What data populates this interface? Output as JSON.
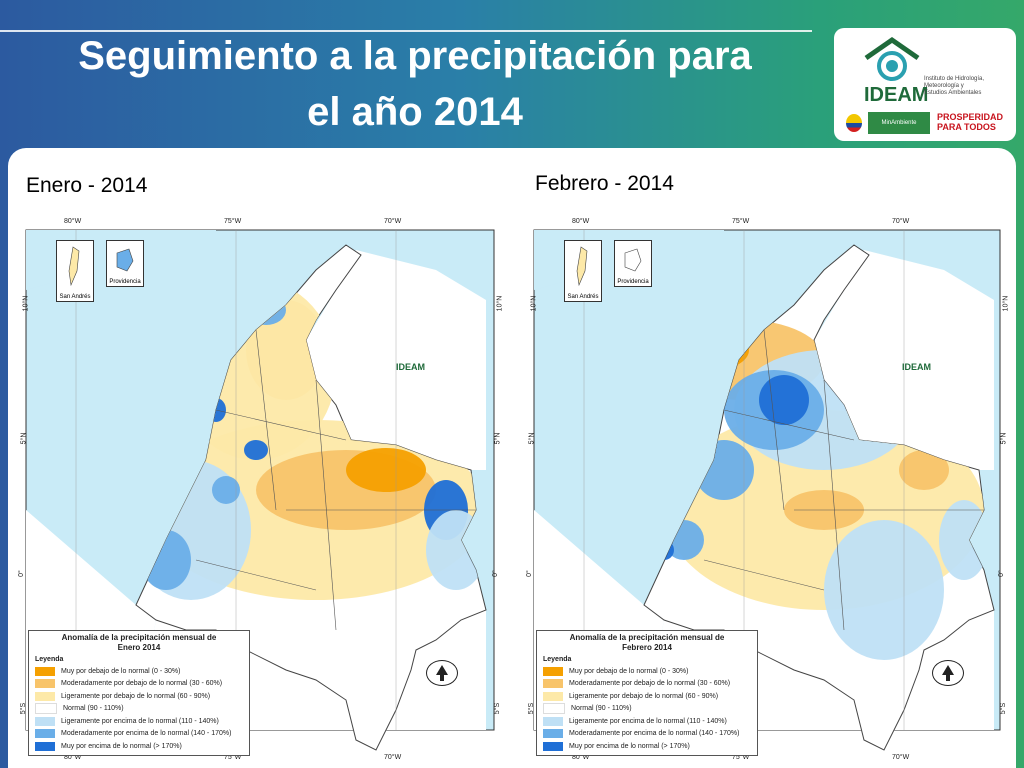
{
  "header": {
    "title_line1": "Seguimiento a la precipitación para",
    "title_line2": "el año 2014"
  },
  "logos": {
    "ideam": "IDEAM",
    "ideam_institute": [
      "Instituto de Hidrología,",
      "Meteorología y",
      "Estudios Ambientales"
    ],
    "minambiente": "MinAmbiente",
    "prosperidad": [
      "PROSPERIDAD",
      "PARA TODOS"
    ]
  },
  "maps": [
    {
      "label": "Enero - 2014",
      "legend_title": [
        "Anomalía de la precipitación mensual de",
        "Enero 2014"
      ],
      "inset_labels": [
        "San Andrés",
        "Providencia"
      ]
    },
    {
      "label": "Febrero - 2014",
      "legend_title": [
        "Anomalía de la precipitación mensual de",
        "Febrero 2014"
      ],
      "inset_labels": [
        "San Andrés",
        "Providencia"
      ]
    }
  ],
  "legend": {
    "heading": "Leyenda",
    "items": [
      {
        "label": "Muy por debajo de lo normal (0 - 30%)",
        "color": "#f5a000"
      },
      {
        "label": "Moderadamente por debajo de lo normal (30 - 60%)",
        "color": "#f8c46a"
      },
      {
        "label": "Ligeramente por debajo de lo normal (60 - 90%)",
        "color": "#fde9a8"
      },
      {
        "label": "Normal (90 - 110%)",
        "color": "#ffffff"
      },
      {
        "label": "Ligeramente por encima de lo normal (110 - 140%)",
        "color": "#bfe0f5"
      },
      {
        "label": "Moderadamente por encima de lo normal (140 - 170%)",
        "color": "#6aaee8"
      },
      {
        "label": "Muy por encima de lo normal (> 170%)",
        "color": "#1f6fd6"
      }
    ]
  },
  "graticule": {
    "lon": [
      "80°W",
      "75°W",
      "70°W"
    ],
    "lat": [
      "10°N",
      "5°N",
      "0°",
      "5°S"
    ]
  },
  "map_logo": "IDEAM",
  "colors": {
    "sea": "#c9ebf7",
    "land_neighbor": "#ffffff",
    "title_text": "#ffffff"
  }
}
